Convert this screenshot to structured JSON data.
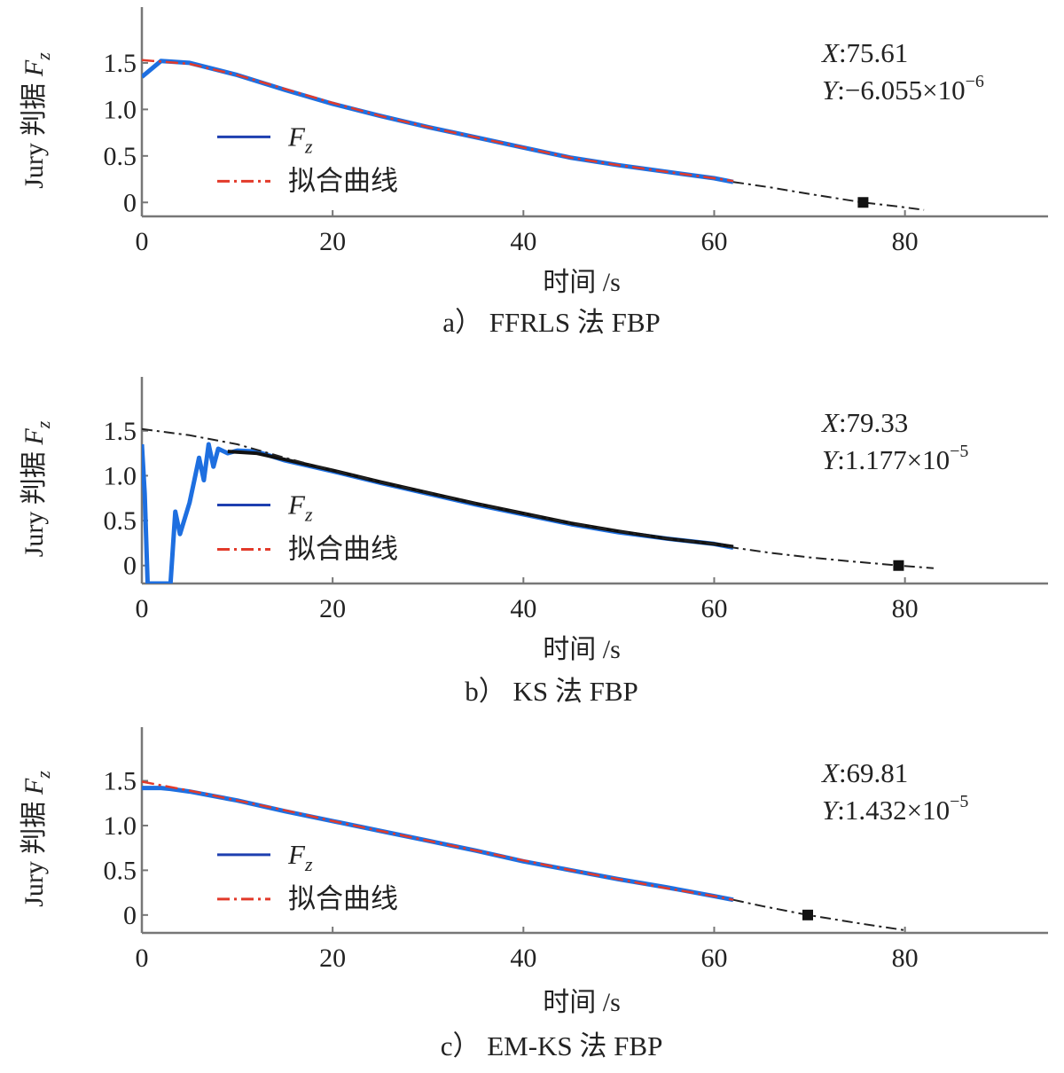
{
  "chart_data": [
    {
      "type": "line",
      "panel": "a",
      "caption": "a）  FFRLS 法 FBP",
      "xlabel": "时间 /s",
      "ylabel": "Jury 判据 F_z",
      "xlim": [
        0,
        95
      ],
      "ylim": [
        -0.15,
        2.1
      ],
      "xticks": [
        0,
        20,
        40,
        60,
        80
      ],
      "yticks": [
        0,
        0.5,
        1.0,
        1.5
      ],
      "ytick_labels": [
        "0",
        "0.5",
        "1.0",
        "1.5"
      ],
      "legend": {
        "position": "center-left",
        "entries": [
          "F_z",
          "拟合曲线"
        ]
      },
      "annotation": {
        "x_label": "X",
        "x_value": ":75.61",
        "y_label": "Y",
        "y_value": ":−6.055×10",
        "y_exponent": "−6"
      },
      "series": [
        {
          "name": "F_z",
          "color": "#1e6fe0",
          "x": [
            0,
            2,
            5,
            10,
            15,
            20,
            25,
            30,
            35,
            40,
            45,
            50,
            55,
            60,
            62
          ],
          "y": [
            1.35,
            1.52,
            1.5,
            1.37,
            1.21,
            1.06,
            0.93,
            0.81,
            0.7,
            0.59,
            0.48,
            0.4,
            0.33,
            0.26,
            0.22
          ]
        },
        {
          "name": "拟合曲线",
          "color": "#e23a2a",
          "x": [
            0,
            5,
            10,
            15,
            20,
            25,
            30,
            35,
            40,
            45,
            50,
            55,
            60,
            62
          ],
          "y": [
            1.53,
            1.49,
            1.37,
            1.22,
            1.07,
            0.93,
            0.81,
            0.7,
            0.59,
            0.48,
            0.4,
            0.33,
            0.26,
            0.23
          ]
        },
        {
          "name": "",
          "color": "#222222",
          "x": [
            62,
            66,
            70,
            75.61,
            79,
            82
          ],
          "y": [
            0.22,
            0.16,
            0.09,
            0.0,
            -0.04,
            -0.08
          ]
        }
      ],
      "marker": {
        "x": 75.61,
        "y": 0.0
      }
    },
    {
      "type": "line",
      "panel": "b",
      "caption": "b）   KS 法 FBP",
      "xlabel": "时间 /s",
      "ylabel": "Jury 判据 F_z",
      "xlim": [
        0,
        95
      ],
      "ylim": [
        -0.2,
        2.1
      ],
      "xticks": [
        0,
        20,
        40,
        60,
        80
      ],
      "yticks": [
        0,
        0.5,
        1.0,
        1.5
      ],
      "ytick_labels": [
        "0",
        "0.5",
        "1.0",
        "1.5"
      ],
      "legend": {
        "position": "center-left",
        "entries": [
          "F_z",
          "拟合曲线"
        ]
      },
      "annotation": {
        "x_label": "X",
        "x_value": ":79.33",
        "y_label": "Y",
        "y_value": ":1.177×10",
        "y_exponent": "−5"
      },
      "series": [
        {
          "name": "F_z",
          "color": "#1e6fe0",
          "x": [
            0,
            0.3,
            0.6,
            1.0,
            3.0,
            3.5,
            4.0,
            5.0,
            5.5,
            6.0,
            6.5,
            7.0,
            7.5,
            8.0,
            9.0,
            10,
            12,
            15,
            20,
            25,
            30,
            35,
            40,
            45,
            50,
            55,
            60,
            62
          ],
          "y": [
            1.35,
            0.8,
            -0.2,
            -0.2,
            -0.2,
            0.6,
            0.35,
            0.7,
            0.95,
            1.2,
            0.95,
            1.35,
            1.1,
            1.3,
            1.25,
            1.28,
            1.27,
            1.17,
            1.05,
            0.92,
            0.8,
            0.68,
            0.57,
            0.46,
            0.37,
            0.3,
            0.24,
            0.2
          ]
        },
        {
          "name": "拟合曲线",
          "color": "#111111",
          "x": [
            9,
            12,
            15,
            20,
            25,
            30,
            35,
            40,
            45,
            50,
            55,
            60,
            62
          ],
          "y": [
            1.27,
            1.25,
            1.18,
            1.06,
            0.93,
            0.81,
            0.69,
            0.58,
            0.47,
            0.38,
            0.3,
            0.24,
            0.21
          ]
        },
        {
          "name": "",
          "color": "#222222",
          "x": [
            0,
            5,
            10,
            15,
            20,
            25,
            30,
            35,
            40,
            45,
            50,
            55,
            60,
            62,
            66,
            70,
            74,
            79.33,
            83
          ],
          "y": [
            1.52,
            1.45,
            1.35,
            1.2,
            1.06,
            0.93,
            0.81,
            0.69,
            0.58,
            0.47,
            0.38,
            0.3,
            0.24,
            0.2,
            0.14,
            0.09,
            0.05,
            0.0,
            -0.03
          ]
        }
      ],
      "marker": {
        "x": 79.33,
        "y": 0.0
      }
    },
    {
      "type": "line",
      "panel": "c",
      "caption": "c）  EM-KS 法 FBP",
      "xlabel": "时间 /s",
      "ylabel": "Jury 判据 F_z",
      "xlim": [
        0,
        95
      ],
      "ylim": [
        -0.2,
        2.1
      ],
      "xticks": [
        0,
        20,
        40,
        60,
        80
      ],
      "yticks": [
        0,
        0.5,
        1.0,
        1.5
      ],
      "ytick_labels": [
        "0",
        "0.5",
        "1.0",
        "1.5"
      ],
      "legend": {
        "position": "center-left",
        "entries": [
          "F_z",
          "拟合曲线"
        ]
      },
      "annotation": {
        "x_label": "X",
        "x_value": ":69.81",
        "y_label": "Y",
        "y_value": ":1.432×10",
        "y_exponent": "−5"
      },
      "series": [
        {
          "name": "F_z",
          "color": "#1e6fe0",
          "x": [
            0,
            2,
            3,
            5,
            10,
            15,
            20,
            25,
            30,
            35,
            40,
            45,
            50,
            55,
            60,
            62
          ],
          "y": [
            1.42,
            1.42,
            1.41,
            1.38,
            1.28,
            1.16,
            1.05,
            0.94,
            0.83,
            0.72,
            0.6,
            0.5,
            0.4,
            0.31,
            0.21,
            0.17
          ]
        },
        {
          "name": "拟合曲线",
          "color": "#e23a2a",
          "x": [
            0,
            5,
            10,
            15,
            20,
            25,
            30,
            35,
            40,
            45,
            50,
            55,
            60,
            62
          ],
          "y": [
            1.49,
            1.39,
            1.28,
            1.17,
            1.05,
            0.94,
            0.83,
            0.72,
            0.61,
            0.5,
            0.4,
            0.3,
            0.21,
            0.17
          ]
        },
        {
          "name": "",
          "color": "#222222",
          "x": [
            62,
            65,
            69.81,
            75,
            80
          ],
          "y": [
            0.17,
            0.1,
            0.0,
            -0.09,
            -0.17
          ]
        }
      ],
      "marker": {
        "x": 69.81,
        "y": 0.0
      }
    }
  ]
}
